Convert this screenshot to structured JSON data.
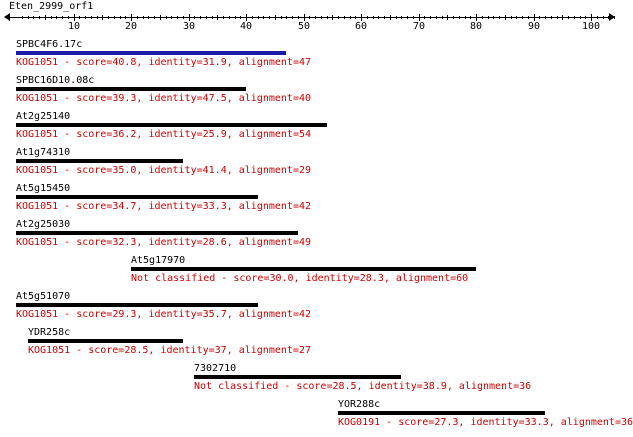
{
  "title": "Eten_2999_orf1",
  "axis": {
    "min": 0,
    "max": 105,
    "major_ticks": [
      10,
      20,
      30,
      40,
      50,
      60,
      70,
      80,
      90,
      100
    ]
  },
  "colors": {
    "bar_default": "#000000",
    "bar_best": "#1a1aa8",
    "desc_text": "#cc0000",
    "name_text": "#000000"
  },
  "hits": [
    {
      "name": "SPBC4F6.17c",
      "start": 0,
      "end": 47,
      "best": true,
      "desc": "KOG1051 - score=40.8, identity=31.9, alignment=47"
    },
    {
      "name": "SPBC16D10.08c",
      "start": 0,
      "end": 40,
      "best": false,
      "desc": "KOG1051 - score=39.3, identity=47.5, alignment=40"
    },
    {
      "name": "At2g25140",
      "start": 0,
      "end": 54,
      "best": false,
      "desc": "KOG1051 - score=36.2, identity=25.9, alignment=54"
    },
    {
      "name": "At1g74310",
      "start": 0,
      "end": 29,
      "best": false,
      "desc": "KOG1051 - score=35.0, identity=41.4, alignment=29"
    },
    {
      "name": "At5g15450",
      "start": 0,
      "end": 42,
      "best": false,
      "desc": "KOG1051 - score=34.7, identity=33.3, alignment=42"
    },
    {
      "name": "At2g25030",
      "start": 0,
      "end": 49,
      "best": false,
      "desc": "KOG1051 - score=32.3, identity=28.6, alignment=49"
    },
    {
      "name": "At5g17970",
      "start": 20,
      "end": 80,
      "best": false,
      "desc": "Not classified - score=30.0, identity=28.3, alignment=60"
    },
    {
      "name": "At5g51070",
      "start": 0,
      "end": 42,
      "best": false,
      "desc": "KOG1051 - score=29.3, identity=35.7, alignment=42"
    },
    {
      "name": "YDR258c",
      "start": 2,
      "end": 29,
      "best": false,
      "desc": "KOG1051 - score=28.5, identity=37, alignment=27"
    },
    {
      "name": "7302710",
      "start": 31,
      "end": 67,
      "best": false,
      "desc": "Not classified - score=28.5, identity=38.9, alignment=36"
    },
    {
      "name": "YOR288c",
      "start": 56,
      "end": 92,
      "best": false,
      "desc": "KOG0191 - score=27.3, identity=33.3, alignment=36"
    }
  ]
}
